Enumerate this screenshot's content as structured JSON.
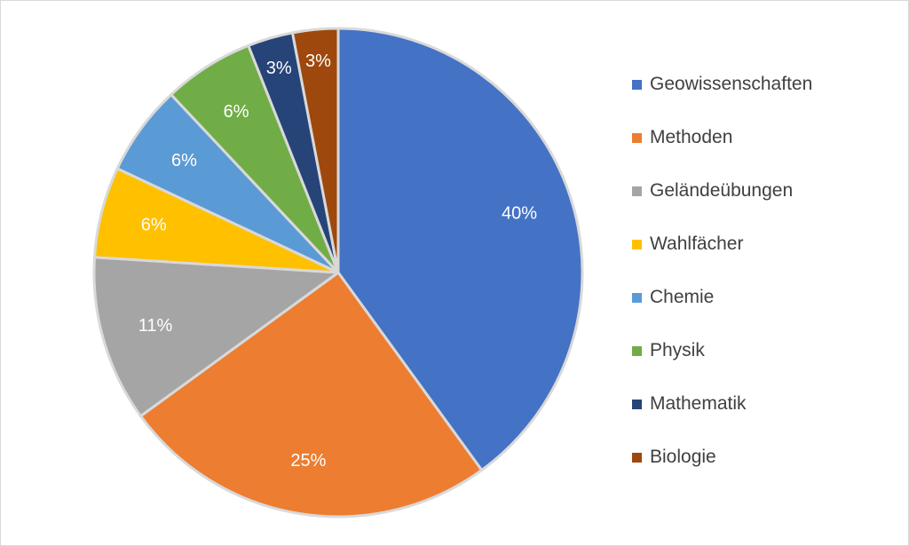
{
  "chart_data": {
    "type": "pie",
    "title": "",
    "slices": [
      {
        "label": "Geowissenschaften",
        "value": 40,
        "display": "40%",
        "color": "#4472C4",
        "label_color": "#ffffff"
      },
      {
        "label": "Methoden",
        "value": 25,
        "display": "25%",
        "color": "#ED7D31",
        "label_color": "#ffffff"
      },
      {
        "label": "Geländeübungen",
        "value": 11,
        "display": "11%",
        "color": "#A5A5A5",
        "label_color": "#ffffff"
      },
      {
        "label": "Wahlfächer",
        "value": 6,
        "display": "6%",
        "color": "#FFC000",
        "label_color": "#ffffff"
      },
      {
        "label": "Chemie",
        "value": 6,
        "display": "6%",
        "color": "#5B9BD5",
        "label_color": "#ffffff"
      },
      {
        "label": "Physik",
        "value": 6,
        "display": "6%",
        "color": "#70AD47",
        "label_color": "#ffffff"
      },
      {
        "label": "Mathematik",
        "value": 3,
        "display": "3%",
        "color": "#264478",
        "label_color": "#ffffff"
      },
      {
        "label": "Biologie",
        "value": 3,
        "display": "3%",
        "color": "#9E480E",
        "label_color": "#ffffff"
      }
    ],
    "legend_position": "right",
    "slice_border_color": "#D9D9D9",
    "start_angle": "12 o'clock",
    "direction": "clockwise"
  }
}
